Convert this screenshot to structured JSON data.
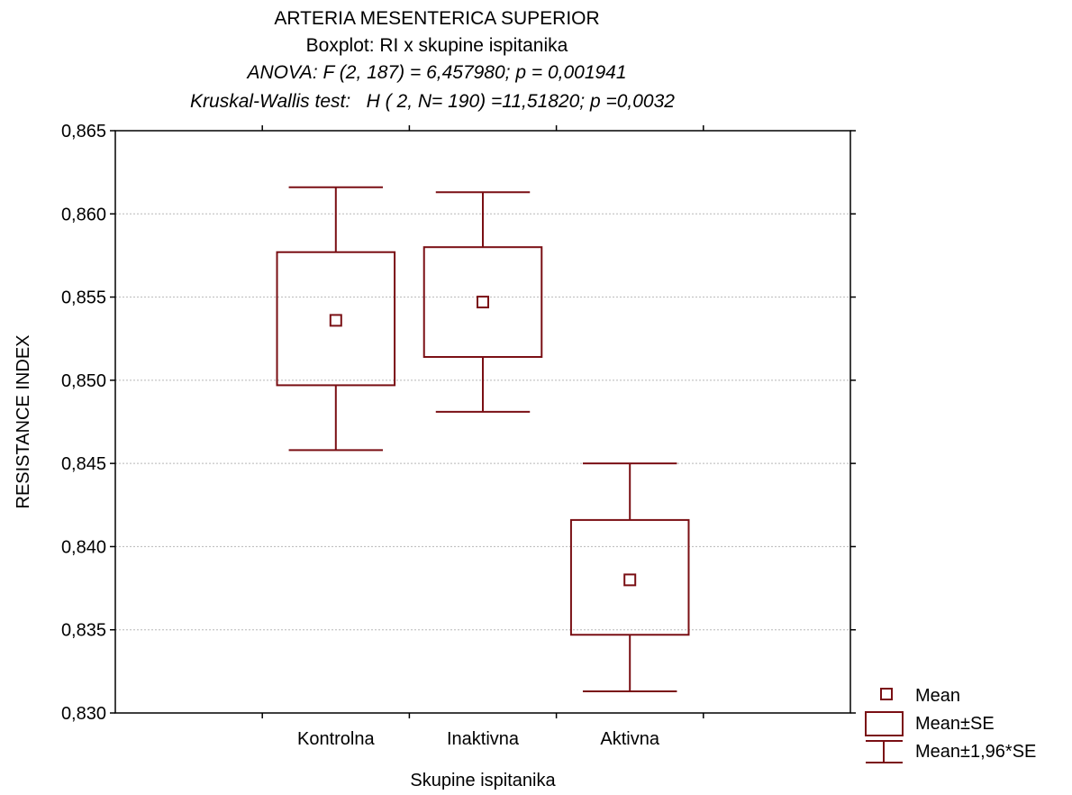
{
  "chart_data": {
    "type": "boxplot",
    "title_lines": [
      "ARTERIA MESENTERICA SUPERIOR",
      "Boxplot: RI x skupine ispitanika",
      "ANOVA: F (2, 187) = 6,457980; p = 0,001941",
      "Kruskal-Wallis test:   H ( 2, N= 190) =11,51820; p =0,0032"
    ],
    "xlabel": "Skupine ispitanika",
    "ylabel": "RESISTANCE INDEX",
    "ylim": [
      0.83,
      0.865
    ],
    "yticks": [
      "0,830",
      "0,835",
      "0,840",
      "0,845",
      "0,850",
      "0,855",
      "0,860",
      "0,865"
    ],
    "grid": "horizontal dotted",
    "categories": [
      "Kontrolna",
      "Inaktivna",
      "Aktivna"
    ],
    "series": [
      {
        "category": "Kontrolna",
        "mean": 0.8536,
        "se_low": 0.8497,
        "se_high": 0.8577,
        "ci_low": 0.8458,
        "ci_high": 0.8616
      },
      {
        "category": "Inaktivna",
        "mean": 0.8547,
        "se_low": 0.8514,
        "se_high": 0.858,
        "ci_low": 0.8481,
        "ci_high": 0.8613
      },
      {
        "category": "Aktivna",
        "mean": 0.838,
        "se_low": 0.8347,
        "se_high": 0.8416,
        "ci_low": 0.8313,
        "ci_high": 0.845
      }
    ],
    "legend": {
      "position": "bottom-right outside",
      "items": [
        "Mean",
        "Mean±SE",
        "Mean±1,96*SE"
      ]
    },
    "color": "#7a0f14"
  }
}
